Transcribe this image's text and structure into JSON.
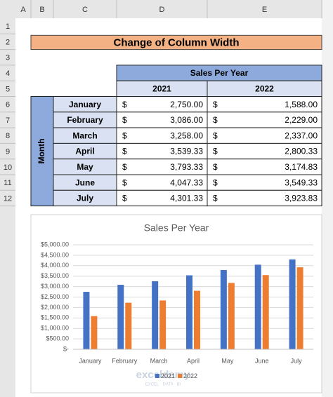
{
  "columns": [
    "A",
    "B",
    "C",
    "D",
    "E"
  ],
  "row_numbers": [
    "1",
    "2",
    "3",
    "4",
    "5",
    "6",
    "7",
    "8",
    "9",
    "10",
    "11",
    "12"
  ],
  "title": "Change of Column Width",
  "table": {
    "header": "Sales Per Year",
    "years": [
      "2021",
      "2022"
    ],
    "row_label": "Month",
    "currency": "$",
    "rows": [
      [
        "January",
        "2,750.00",
        "1,588.00"
      ],
      [
        "February",
        "3,086.00",
        "2,229.00"
      ],
      [
        "March",
        "3,258.00",
        "2,337.00"
      ],
      [
        "April",
        "3,539.33",
        "2,800.33"
      ],
      [
        "May",
        "3,793.33",
        "3,174.83"
      ],
      [
        "June",
        "4,047.33",
        "3,549.33"
      ],
      [
        "July",
        "4,301.33",
        "3,923.83"
      ]
    ]
  },
  "chart_data": {
    "type": "bar",
    "title": "Sales Per Year",
    "categories": [
      "January",
      "February",
      "March",
      "April",
      "May",
      "June",
      "July"
    ],
    "series": [
      {
        "name": "2021",
        "color": "#4472c4",
        "values": [
          2750,
          3086,
          3258,
          3539.33,
          3793.33,
          4047.33,
          4301.33
        ]
      },
      {
        "name": "2022",
        "color": "#ed7d31",
        "values": [
          1588,
          2229,
          2337,
          2800.33,
          3174.83,
          3549.33,
          3923.83
        ]
      }
    ],
    "ylim": [
      0,
      5000
    ],
    "yticks": [
      {
        "value": 0,
        "label": "$-"
      },
      {
        "value": 500,
        "label": "$500.00"
      },
      {
        "value": 1000,
        "label": "$1,000.00"
      },
      {
        "value": 1500,
        "label": "$1,500.00"
      },
      {
        "value": 2000,
        "label": "$2,000.00"
      },
      {
        "value": 2500,
        "label": "$2,500.00"
      },
      {
        "value": 3000,
        "label": "$3,000.00"
      },
      {
        "value": 3500,
        "label": "$3,500.00"
      },
      {
        "value": 4000,
        "label": "$4,000.00"
      },
      {
        "value": 4500,
        "label": "$4,500.00"
      },
      {
        "value": 5000,
        "label": "$5,000.00"
      }
    ],
    "grid": true,
    "legend": "bottom"
  },
  "watermark": {
    "name": "exceldemy",
    "tagline": "EXCEL · DATA · BI"
  }
}
